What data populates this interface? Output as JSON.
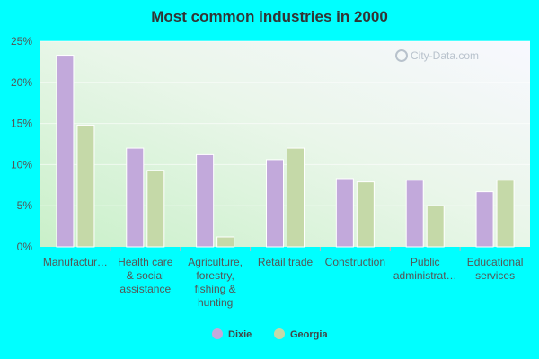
{
  "chart_data": {
    "type": "bar",
    "title": "Most common industries in 2000",
    "xlabel": "",
    "ylabel": "",
    "ylim": [
      0,
      25
    ],
    "yticks": [
      0,
      5,
      10,
      15,
      20,
      25
    ],
    "ytick_labels": [
      "0%",
      "5%",
      "10%",
      "15%",
      "20%",
      "25%"
    ],
    "grid": true,
    "legend_position": "bottom-center",
    "categories": [
      [
        "Manufactur…"
      ],
      [
        "Health care",
        "& social",
        "assistance"
      ],
      [
        "Agriculture,",
        "forestry,",
        "fishing &",
        "hunting"
      ],
      [
        "Retail trade"
      ],
      [
        "Construction"
      ],
      [
        "Public",
        "administrat…"
      ],
      [
        "Educational",
        "services"
      ]
    ],
    "series": [
      {
        "name": "Dixie",
        "color": "#c2a9db",
        "values": [
          23.3,
          12.0,
          11.2,
          10.6,
          8.3,
          8.1,
          6.7
        ]
      },
      {
        "name": "Georgia",
        "color": "#c5d9a8",
        "values": [
          14.8,
          9.3,
          1.2,
          12.0,
          7.9,
          5.0,
          8.1
        ]
      }
    ]
  },
  "watermark": "City-Data.com"
}
